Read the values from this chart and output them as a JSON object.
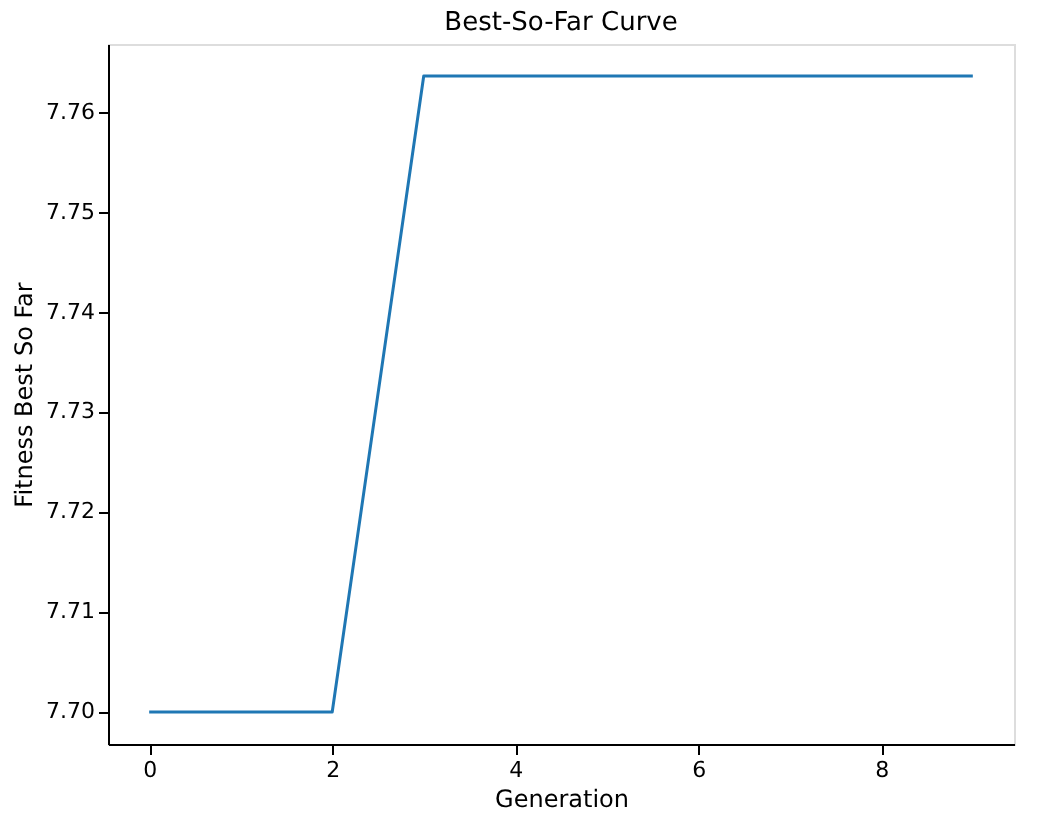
{
  "chart_data": {
    "type": "line",
    "title": "Best-So-Far Curve",
    "xlabel": "Generation",
    "ylabel": "Fitness Best So Far",
    "x": [
      0,
      1,
      2,
      3,
      4,
      5,
      6,
      7,
      8,
      9
    ],
    "series": [
      {
        "color": "#1f77b4",
        "values": [
          7.6999,
          7.6999,
          7.6999,
          7.7636,
          7.7636,
          7.7636,
          7.7636,
          7.7636,
          7.7636,
          7.7636
        ]
      }
    ],
    "xlim": [
      -0.45,
      9.45
    ],
    "xticks": [
      0,
      2,
      4,
      6,
      8
    ],
    "ylim": [
      7.6967,
      7.7668
    ],
    "yticks": [
      {
        "value": 7.7,
        "label": "7.70"
      },
      7.71,
      7.72,
      7.73,
      7.74,
      7.75,
      7.76
    ],
    "grid": false,
    "legend": false,
    "marker": "none",
    "line_style": "solid"
  }
}
